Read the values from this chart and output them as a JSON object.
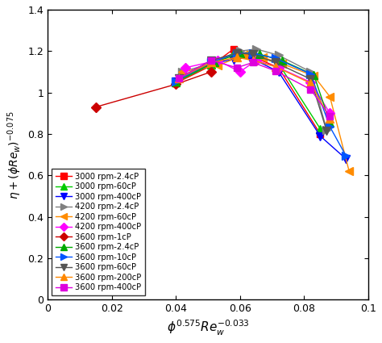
{
  "xlabel": "$\\phi^{0.575}Re_w^{-0.033}$",
  "ylabel": "$\\eta + (\\phi Re_w)^{-0.075}$",
  "xlim": [
    0,
    0.1
  ],
  "ylim": [
    0,
    1.4
  ],
  "xticks": [
    0,
    0.02,
    0.04,
    0.06,
    0.08,
    0.1
  ],
  "yticks": [
    0,
    0.2,
    0.4,
    0.6,
    0.8,
    1.0,
    1.2,
    1.4
  ],
  "series": [
    {
      "label": "3000 rpm-2.4cP",
      "color": "#ff0000",
      "marker": "s",
      "markersize": 6,
      "x": [
        0.04,
        0.051,
        0.058,
        0.063,
        0.072,
        0.085
      ],
      "y": [
        1.045,
        1.13,
        1.21,
        1.18,
        1.12,
        0.8
      ]
    },
    {
      "label": "3000 rpm-60cP",
      "color": "#00cc00",
      "marker": "^",
      "markersize": 7,
      "x": [
        0.04,
        0.051,
        0.058,
        0.063,
        0.072,
        0.085
      ],
      "y": [
        1.05,
        1.135,
        1.19,
        1.19,
        1.14,
        0.825
      ]
    },
    {
      "label": "3000 rpm-400cP",
      "color": "#0000ff",
      "marker": "v",
      "markersize": 7,
      "x": [
        0.04,
        0.051,
        0.058,
        0.063,
        0.072,
        0.085,
        0.093
      ],
      "y": [
        1.055,
        1.14,
        1.16,
        1.17,
        1.1,
        0.79,
        0.68
      ]
    },
    {
      "label": "4200 rpm-2.4cP",
      "color": "#808080",
      "marker": ">",
      "markersize": 7,
      "x": [
        0.042,
        0.052,
        0.06,
        0.065,
        0.072,
        0.082,
        0.087
      ],
      "y": [
        1.1,
        1.145,
        1.2,
        1.21,
        1.18,
        1.1,
        0.82
      ]
    },
    {
      "label": "4200 rpm-60cP",
      "color": "#ff8c00",
      "marker": "<",
      "markersize": 7,
      "x": [
        0.042,
        0.053,
        0.061,
        0.067,
        0.073,
        0.083,
        0.088,
        0.094
      ],
      "y": [
        1.1,
        1.13,
        1.18,
        1.17,
        1.14,
        1.08,
        0.98,
        0.62
      ]
    },
    {
      "label": "4200 rpm-400cP",
      "color": "#ff00ff",
      "marker": "D",
      "markersize": 6,
      "x": [
        0.043,
        0.053,
        0.06,
        0.065,
        0.072,
        0.082,
        0.088
      ],
      "y": [
        1.12,
        1.155,
        1.1,
        1.155,
        1.12,
        1.05,
        0.9
      ]
    },
    {
      "label": "3600 rpm-1cP",
      "color": "#cc0000",
      "marker": "D",
      "markersize": 6,
      "x": [
        0.015,
        0.04,
        0.051
      ],
      "y": [
        0.93,
        1.04,
        1.1
      ]
    },
    {
      "label": "3600 rpm-2.4cP",
      "color": "#00aa00",
      "marker": "^",
      "markersize": 7,
      "x": [
        0.04,
        0.052,
        0.06,
        0.066,
        0.073,
        0.083,
        0.088
      ],
      "y": [
        1.055,
        1.145,
        1.19,
        1.185,
        1.155,
        1.085,
        0.855
      ]
    },
    {
      "label": "3600 rpm-10cP",
      "color": "#0055ff",
      "marker": ">",
      "markersize": 7,
      "x": [
        0.04,
        0.051,
        0.059,
        0.064,
        0.071,
        0.082,
        0.088,
        0.093
      ],
      "y": [
        1.055,
        1.145,
        1.19,
        1.19,
        1.165,
        1.09,
        0.835,
        0.695
      ]
    },
    {
      "label": "3600 rpm-60cP",
      "color": "#555555",
      "marker": "v",
      "markersize": 7,
      "x": [
        0.041,
        0.051,
        0.059,
        0.064,
        0.071,
        0.082,
        0.087
      ],
      "y": [
        1.07,
        1.155,
        1.19,
        1.185,
        1.145,
        1.065,
        0.815
      ]
    },
    {
      "label": "3600 rpm-200cP",
      "color": "#ff8800",
      "marker": "^",
      "markersize": 7,
      "x": [
        0.041,
        0.051,
        0.059,
        0.064,
        0.071,
        0.082,
        0.088
      ],
      "y": [
        1.07,
        1.145,
        1.17,
        1.155,
        1.125,
        1.045,
        0.875
      ]
    },
    {
      "label": "3600 rpm-400cP",
      "color": "#dd00dd",
      "marker": "s",
      "markersize": 6,
      "x": [
        0.041,
        0.051,
        0.059,
        0.064,
        0.071,
        0.082,
        0.088
      ],
      "y": [
        1.07,
        1.155,
        1.12,
        1.145,
        1.105,
        1.015,
        0.885
      ]
    }
  ]
}
